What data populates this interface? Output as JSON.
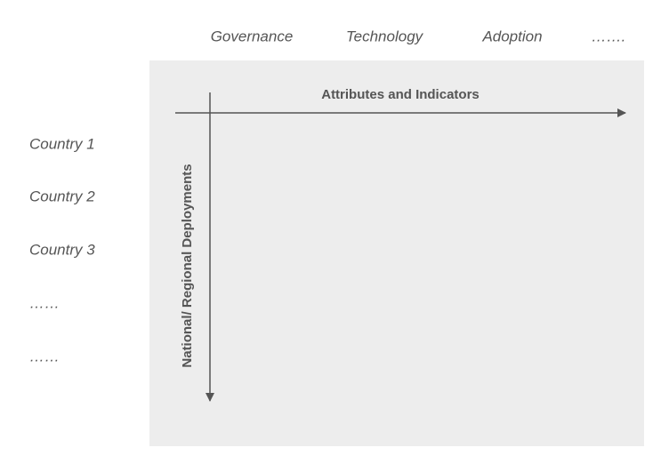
{
  "columns": [
    "Governance",
    "Technology",
    "Adoption",
    "……."
  ],
  "rows": [
    "Country 1",
    "Country 2",
    "Country 3",
    "……",
    "……"
  ],
  "horizontal_axis": {
    "label": "Attributes and Indicators"
  },
  "vertical_axis": {
    "label": "National/ Regional Deployments"
  }
}
